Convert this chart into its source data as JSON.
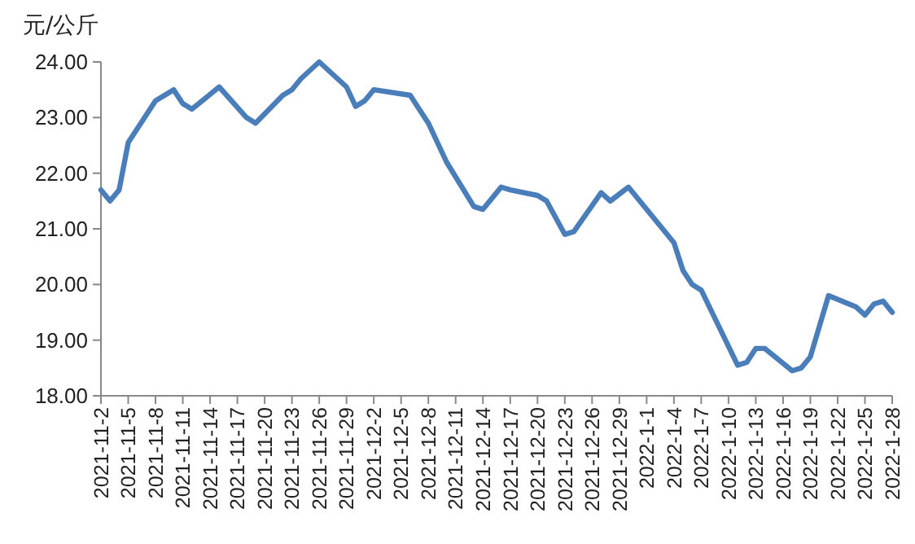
{
  "chart_data": {
    "type": "line",
    "ylabel": "元/公斤",
    "x": [
      "2021-11-02",
      "2021-11-03",
      "2021-11-04",
      "2021-11-05",
      "2021-11-08",
      "2021-11-10",
      "2021-11-11",
      "2021-11-12",
      "2021-11-15",
      "2021-11-18",
      "2021-11-19",
      "2021-11-22",
      "2021-11-23",
      "2021-11-24",
      "2021-11-26",
      "2021-11-29",
      "2021-11-30",
      "2021-12-01",
      "2021-12-02",
      "2021-12-06",
      "2021-12-08",
      "2021-12-10",
      "2021-12-13",
      "2021-12-14",
      "2021-12-16",
      "2021-12-17",
      "2021-12-20",
      "2021-12-21",
      "2021-12-23",
      "2021-12-24",
      "2021-12-27",
      "2021-12-28",
      "2021-12-30",
      "2022-01-04",
      "2022-01-05",
      "2022-01-06",
      "2022-01-07",
      "2022-01-11",
      "2022-01-12",
      "2022-01-13",
      "2022-01-14",
      "2022-01-17",
      "2022-01-18",
      "2022-01-19",
      "2022-01-21",
      "2022-01-24",
      "2022-01-25",
      "2022-01-26",
      "2022-01-27",
      "2022-01-28"
    ],
    "series": [
      {
        "color": "#4a7ebb",
        "values": [
          21.7,
          21.5,
          21.7,
          22.55,
          23.3,
          23.5,
          23.25,
          23.15,
          23.55,
          23.0,
          22.9,
          23.4,
          23.5,
          23.7,
          24.0,
          23.55,
          23.2,
          23.3,
          23.5,
          23.4,
          22.9,
          22.2,
          21.4,
          21.35,
          21.75,
          21.7,
          21.6,
          21.5,
          20.9,
          20.95,
          21.65,
          21.5,
          21.75,
          20.75,
          20.25,
          20.0,
          19.9,
          18.55,
          18.6,
          18.85,
          18.85,
          18.45,
          18.5,
          18.7,
          19.8,
          19.6,
          19.45,
          19.65,
          19.7,
          19.5
        ]
      }
    ],
    "xlim": [
      "2021-11-02",
      "2022-01-28"
    ],
    "xticks": [
      {
        "value": "2021-11-02",
        "label": "2021-11-2"
      },
      {
        "value": "2021-11-05",
        "label": "2021-11-5"
      },
      {
        "value": "2021-11-08",
        "label": "2021-11-8"
      },
      {
        "value": "2021-11-11",
        "label": "2021-11-11"
      },
      {
        "value": "2021-11-14",
        "label": "2021-11-14"
      },
      {
        "value": "2021-11-17",
        "label": "2021-11-17"
      },
      {
        "value": "2021-11-20",
        "label": "2021-11-20"
      },
      {
        "value": "2021-11-23",
        "label": "2021-11-23"
      },
      {
        "value": "2021-11-26",
        "label": "2021-11-26"
      },
      {
        "value": "2021-11-29",
        "label": "2021-11-29"
      },
      {
        "value": "2021-12-02",
        "label": "2021-12-2"
      },
      {
        "value": "2021-12-05",
        "label": "2021-12-5"
      },
      {
        "value": "2021-12-08",
        "label": "2021-12-8"
      },
      {
        "value": "2021-12-11",
        "label": "2021-12-11"
      },
      {
        "value": "2021-12-14",
        "label": "2021-12-14"
      },
      {
        "value": "2021-12-17",
        "label": "2021-12-17"
      },
      {
        "value": "2021-12-20",
        "label": "2021-12-20"
      },
      {
        "value": "2021-12-23",
        "label": "2021-12-23"
      },
      {
        "value": "2021-12-26",
        "label": "2021-12-26"
      },
      {
        "value": "2021-12-29",
        "label": "2021-12-29"
      },
      {
        "value": "2022-01-01",
        "label": "2022-1-1"
      },
      {
        "value": "2022-01-04",
        "label": "2022-1-4"
      },
      {
        "value": "2022-01-07",
        "label": "2022-1-7"
      },
      {
        "value": "2022-01-10",
        "label": "2022-1-10"
      },
      {
        "value": "2022-01-13",
        "label": "2022-1-13"
      },
      {
        "value": "2022-01-16",
        "label": "2022-1-16"
      },
      {
        "value": "2022-01-19",
        "label": "2022-1-19"
      },
      {
        "value": "2022-01-22",
        "label": "2022-1-22"
      },
      {
        "value": "2022-01-25",
        "label": "2022-1-25"
      },
      {
        "value": "2022-01-28",
        "label": "2022-1-28"
      }
    ],
    "ylim": [
      18,
      24
    ],
    "yticks": [
      {
        "value": 18,
        "label": "18.00"
      },
      {
        "value": 19,
        "label": "19.00"
      },
      {
        "value": 20,
        "label": "20.00"
      },
      {
        "value": 21,
        "label": "21.00"
      },
      {
        "value": 22,
        "label": "22.00"
      },
      {
        "value": 23,
        "label": "23.00"
      },
      {
        "value": 24,
        "label": "24.00"
      }
    ],
    "grid": false,
    "marker": "none",
    "line_style": "solid"
  }
}
